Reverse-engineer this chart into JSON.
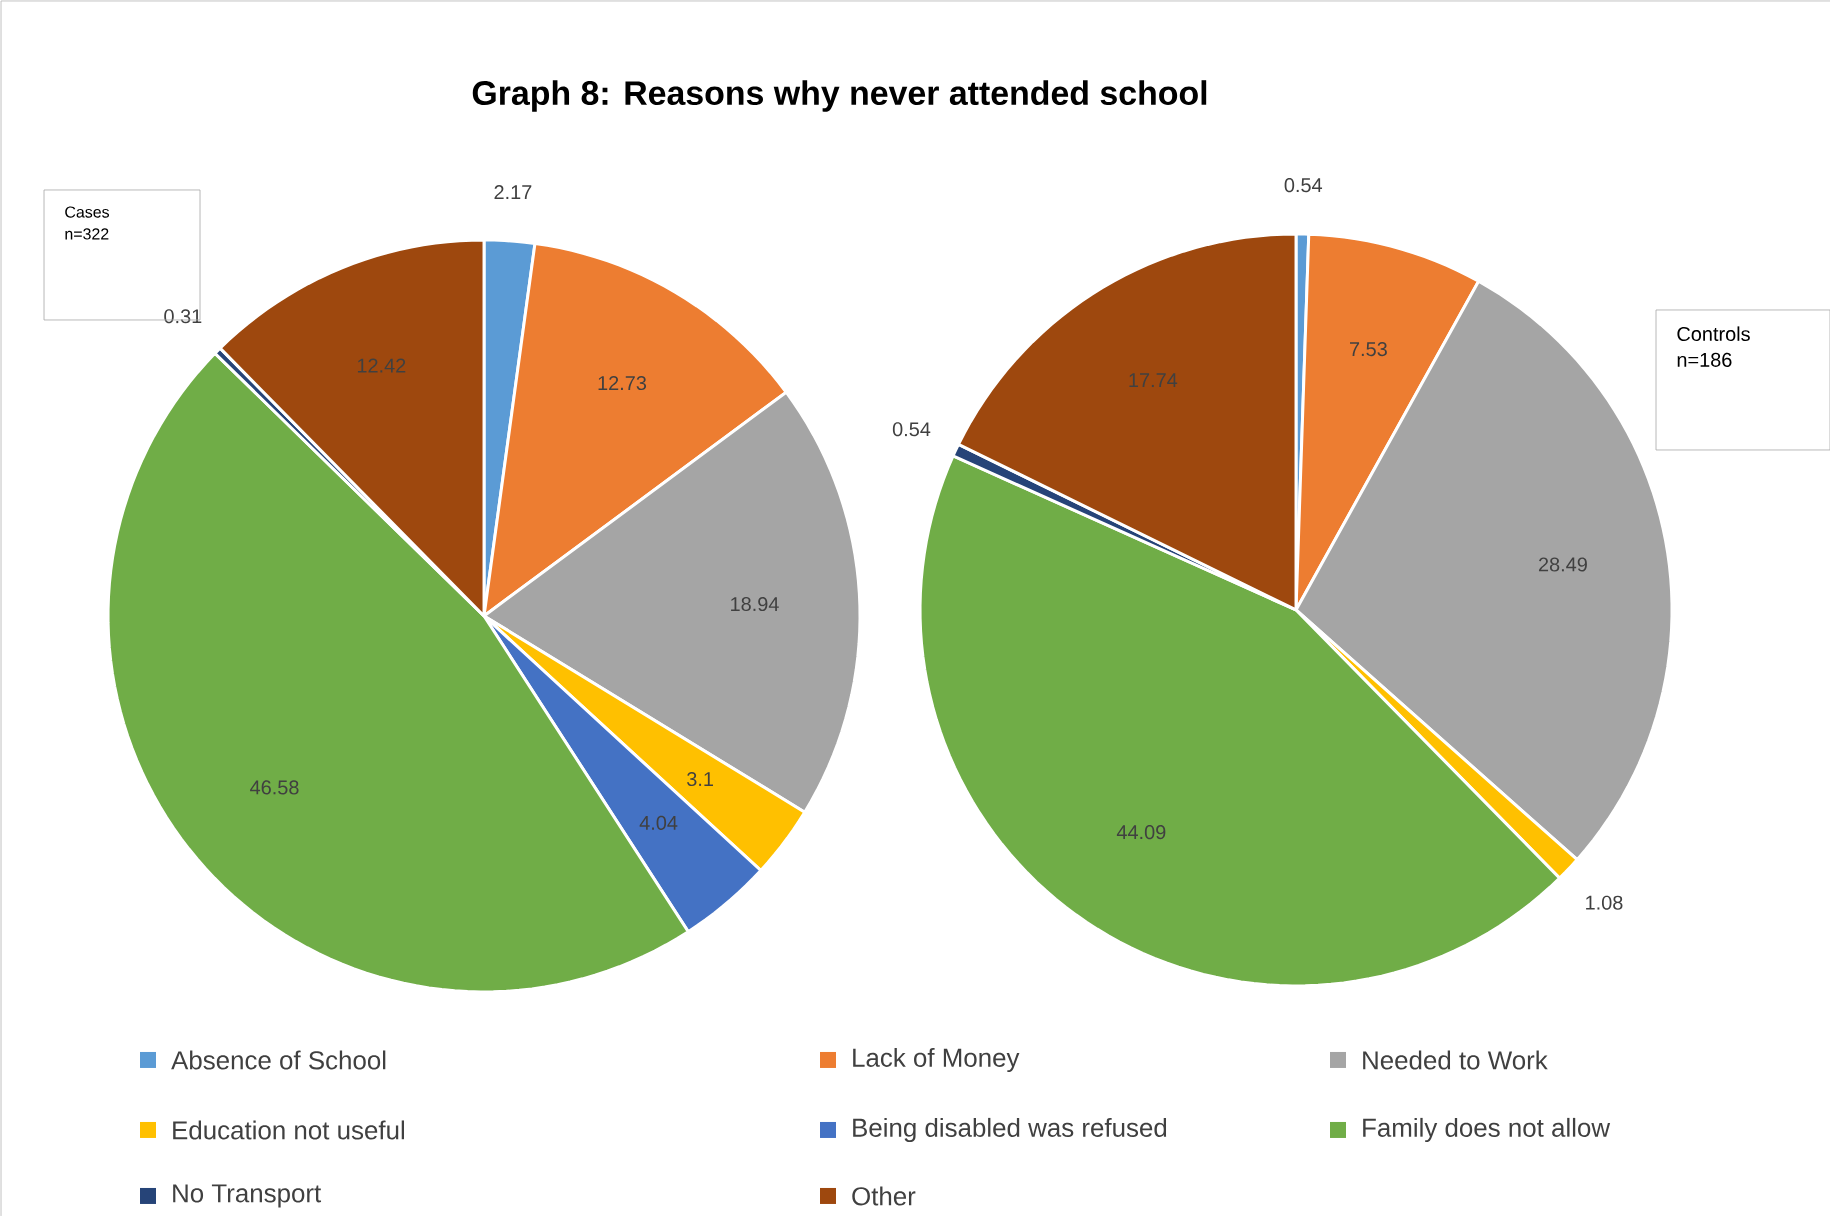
{
  "chart_data": [
    {
      "type": "pie",
      "title": "Graph 8: Reasons why never attended school",
      "categories": [
        "Absence of School",
        "Lack of Money",
        "Needed to Work",
        "Education not useful",
        "Being disabled was refused",
        "Family does not allow",
        "No Transport",
        "Other"
      ],
      "values": [
        2.17,
        12.73,
        18.94,
        3.1,
        4.04,
        46.58,
        0.31,
        12.42
      ],
      "colors": [
        "#5b9bd5",
        "#ed7d31",
        "#a5a5a5",
        "#ffc000",
        "#4472c4",
        "#70ad47",
        "#264478",
        "#9e480e"
      ],
      "data_labels": true,
      "legend": "bottom",
      "annotations": [
        "Cases",
        "n=322"
      ]
    },
    {
      "type": "pie",
      "categories": [
        null,
        null,
        null,
        null,
        null,
        null,
        null,
        null
      ],
      "values": [
        0.54,
        7.53,
        28.49,
        1.08,
        null,
        44.09,
        0.54,
        17.74
      ],
      "colors": [
        "#5b9bd5",
        "#ed7d31",
        "#a5a5a5",
        "#ffc000",
        "#4472c4",
        "#70ad47",
        "#264478",
        "#9e480e"
      ],
      "data_labels": true,
      "annotations": [
        "Controls",
        "n=186"
      ]
    }
  ]
}
